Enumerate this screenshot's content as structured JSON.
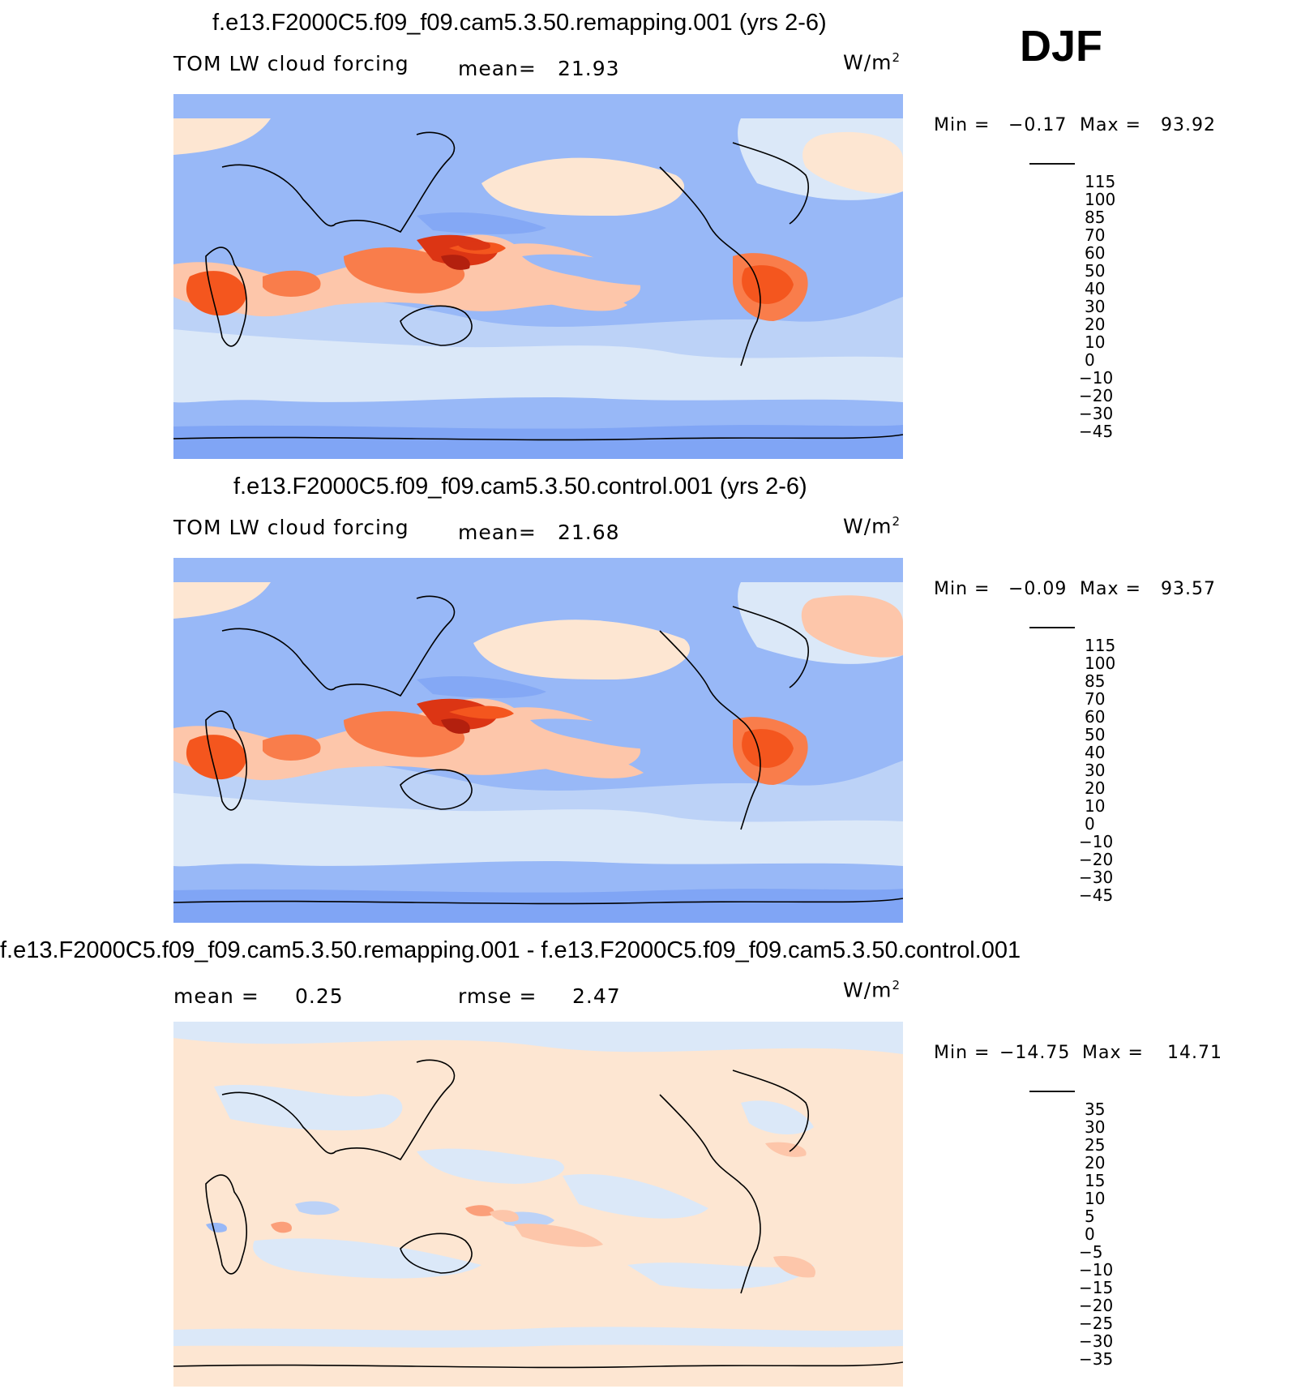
{
  "season_label": "DJF",
  "units_base": "W/m",
  "units_exp": "2",
  "panels": [
    {
      "title": "f.e13.F2000C5.f09_f09.cam5.3.50.remapping.001 (yrs 2-6)",
      "variable": "TOM LW cloud forcing",
      "stat1_label": "mean=",
      "stat1_value": "21.93",
      "minmax": {
        "min_label": "Min =",
        "min_value": "−0.17",
        "max_label": "Max =",
        "max_value": "93.92"
      },
      "colorbar": {
        "levels": [
          "115",
          "100",
          "85",
          "70",
          "60",
          "50",
          "40",
          "30",
          "20",
          "10",
          "0",
          "−10",
          "−20",
          "−30",
          "−45"
        ],
        "colors": [
          "#7a0b0b",
          "#b3200e",
          "#dc3514",
          "#f4561e",
          "#f97d4b",
          "#fb9f7a",
          "#fdc6aa",
          "#fde6d2",
          "#dbe8f8",
          "#bcd2f7",
          "#98b8f7",
          "#6f97f4",
          "#3d6ff0",
          "#1f4fe0",
          "#0d33b8",
          "#061a8c"
        ]
      }
    },
    {
      "title": "f.e13.F2000C5.f09_f09.cam5.3.50.control.001 (yrs 2-6)",
      "variable": "TOM LW cloud forcing",
      "stat1_label": "mean=",
      "stat1_value": "21.68",
      "minmax": {
        "min_label": "Min =",
        "min_value": "−0.09",
        "max_label": "Max =",
        "max_value": "93.57"
      },
      "colorbar": {
        "levels": [
          "115",
          "100",
          "85",
          "70",
          "60",
          "50",
          "40",
          "30",
          "20",
          "10",
          "0",
          "−10",
          "−20",
          "−30",
          "−45"
        ],
        "colors": [
          "#7a0b0b",
          "#b3200e",
          "#dc3514",
          "#f4561e",
          "#f97d4b",
          "#fb9f7a",
          "#fdc6aa",
          "#fde6d2",
          "#dbe8f8",
          "#bcd2f7",
          "#98b8f7",
          "#6f97f4",
          "#3d6ff0",
          "#1f4fe0",
          "#0d33b8",
          "#061a8c"
        ]
      }
    },
    {
      "title": "f.e13.F2000C5.f09_f09.cam5.3.50.remapping.001 - f.e13.F2000C5.f09_f09.cam5.3.50.control.001",
      "stat1_label": "mean =",
      "stat1_value": "0.25",
      "stat2_label": "rmse =",
      "stat2_value": "2.47",
      "minmax": {
        "min_label": "Min =",
        "min_value": "−14.75",
        "max_label": "Max =",
        "max_value": "14.71"
      },
      "colorbar": {
        "levels": [
          "35",
          "30",
          "25",
          "20",
          "15",
          "10",
          "5",
          "0",
          "−5",
          "−10",
          "−15",
          "−20",
          "−25",
          "−30",
          "−35"
        ],
        "colors": [
          "#7a0b0b",
          "#b3200e",
          "#dc3514",
          "#f4561e",
          "#f97d4b",
          "#fb9f7a",
          "#fdc6aa",
          "#fde6d2",
          "#dbe8f8",
          "#bcd2f7",
          "#98b8f7",
          "#6f97f4",
          "#3d6ff0",
          "#1f4fe0",
          "#0d33b8",
          "#061a8c"
        ]
      }
    }
  ]
}
